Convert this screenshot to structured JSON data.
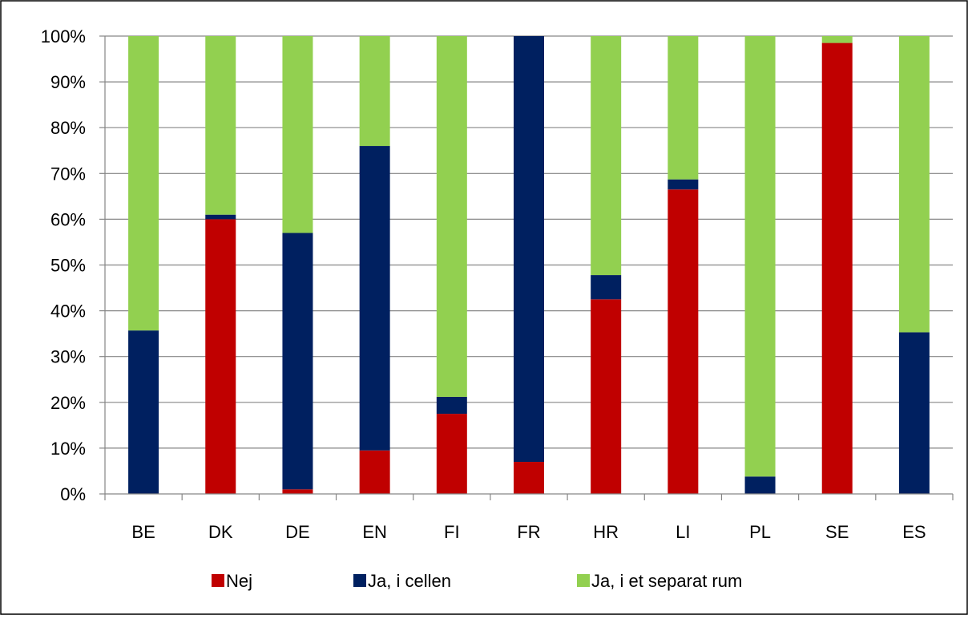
{
  "chart_data": {
    "type": "bar",
    "stacked": true,
    "categories": [
      "BE",
      "DK",
      "DE",
      "EN",
      "FI",
      "FR",
      "HR",
      "LI",
      "PL",
      "SE",
      "ES"
    ],
    "series": [
      {
        "name": "Nej",
        "color": "#C00000",
        "values": [
          0,
          60,
          1,
          9.5,
          17.5,
          7,
          42.5,
          66.5,
          0,
          98.5,
          0
        ]
      },
      {
        "name": "Ja, i cellen",
        "color": "#002060",
        "values": [
          35.7,
          1,
          56,
          66.5,
          3.7,
          93,
          5.3,
          2.2,
          3.8,
          0,
          35.3
        ]
      },
      {
        "name": "Ja, i et separat rum",
        "color": "#92D050",
        "values": [
          64.3,
          39,
          43,
          24,
          78.8,
          0,
          52.2,
          31.3,
          96.2,
          1.5,
          64.7
        ]
      }
    ],
    "ylim": [
      0,
      100
    ],
    "yticks": [
      "0%",
      "10%",
      "20%",
      "30%",
      "40%",
      "50%",
      "60%",
      "70%",
      "80%",
      "90%",
      "100%"
    ],
    "grid": true,
    "legend_position": "bottom"
  }
}
